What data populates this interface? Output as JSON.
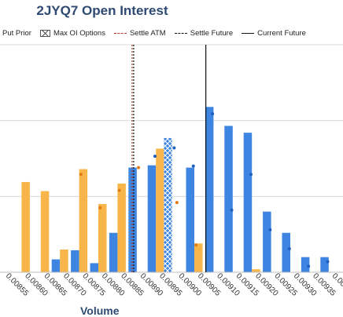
{
  "page": {
    "title": "2JYQ7 Open Interest"
  },
  "legend": [
    {
      "label": "Put Prior",
      "symbol": "dot-orange"
    },
    {
      "label": "Max OI Options",
      "symbol": "hatched-box"
    },
    {
      "label": "Settle ATM",
      "symbol": "dashed-red"
    },
    {
      "label": "Settle Future",
      "symbol": "dashed-black"
    },
    {
      "label": "Current Future",
      "symbol": "solid-black"
    }
  ],
  "colors": {
    "call": "#3d85e0",
    "put": "#f8b64a",
    "dot_call": "#1f5fbf",
    "dot_put": "#e07b14",
    "grid": "#d9d9d9",
    "settle_atm": "#b03a2e",
    "future": "#111111"
  },
  "chart_data": {
    "type": "bar",
    "title": "2JYQ7 Open Interest",
    "xlabel": "Volume",
    "ylabel": "",
    "categories": [
      "0.00855",
      "0.00860",
      "0.00865",
      "0.00870",
      "0.00875",
      "0.00880",
      "0.00885",
      "0.00890",
      "0.00895",
      "0.00900",
      "0.00905",
      "0.00910",
      "0.00915",
      "0.00920",
      "0.00925",
      "0.00930",
      "0.00935",
      "0.00940"
    ],
    "ylim": [
      0,
      300
    ],
    "grid": true,
    "series": [
      {
        "name": "",
        "color": "blue",
        "values": [
          0,
          0,
          0,
          17,
          29,
          12,
          52,
          138,
          141,
          0,
          138,
          218,
          193,
          184,
          80,
          52,
          20,
          20
        ]
      },
      {
        "name": "",
        "color": "orange",
        "values": [
          0,
          119,
          107,
          30,
          136,
          90,
          117,
          0,
          163,
          0,
          38,
          0,
          0,
          4,
          0,
          0,
          0,
          0
        ]
      }
    ],
    "max_oi_option": {
      "category": "0.00895",
      "value": 177
    },
    "prior_dots": [
      {
        "category": "0.00875",
        "series": "put",
        "value": 129
      },
      {
        "category": "0.00880",
        "series": "put",
        "value": 85
      },
      {
        "category": "0.00885",
        "series": "put",
        "value": 108
      },
      {
        "category": "0.00890",
        "series": "put",
        "value": 138
      },
      {
        "category": "0.00895",
        "series": "call",
        "value": 153
      },
      {
        "category": "0.00900",
        "series": "call",
        "value": 164
      },
      {
        "category": "0.00900",
        "series": "put",
        "value": 92
      },
      {
        "category": "0.00905",
        "series": "call",
        "value": 140
      },
      {
        "category": "0.00905",
        "series": "put",
        "value": 36
      },
      {
        "category": "0.00910",
        "series": "call",
        "value": 209
      },
      {
        "category": "0.00915",
        "series": "call",
        "value": 82
      },
      {
        "category": "0.00920",
        "series": "call",
        "value": 129
      },
      {
        "category": "0.00925",
        "series": "call",
        "value": 56
      },
      {
        "category": "0.00930",
        "series": "call",
        "value": 31
      },
      {
        "category": "0.00935",
        "series": "call",
        "value": 8
      },
      {
        "category": "0.00940",
        "series": "call",
        "value": 14
      }
    ],
    "reference_lines": [
      {
        "name": "Settle ATM",
        "x": 0.00889,
        "style": "dashed",
        "color": "red"
      },
      {
        "name": "Settle Future",
        "x": 0.00889,
        "style": "dashed",
        "color": "black"
      },
      {
        "name": "Current Future",
        "x": 0.00908,
        "style": "solid",
        "color": "black"
      }
    ]
  }
}
